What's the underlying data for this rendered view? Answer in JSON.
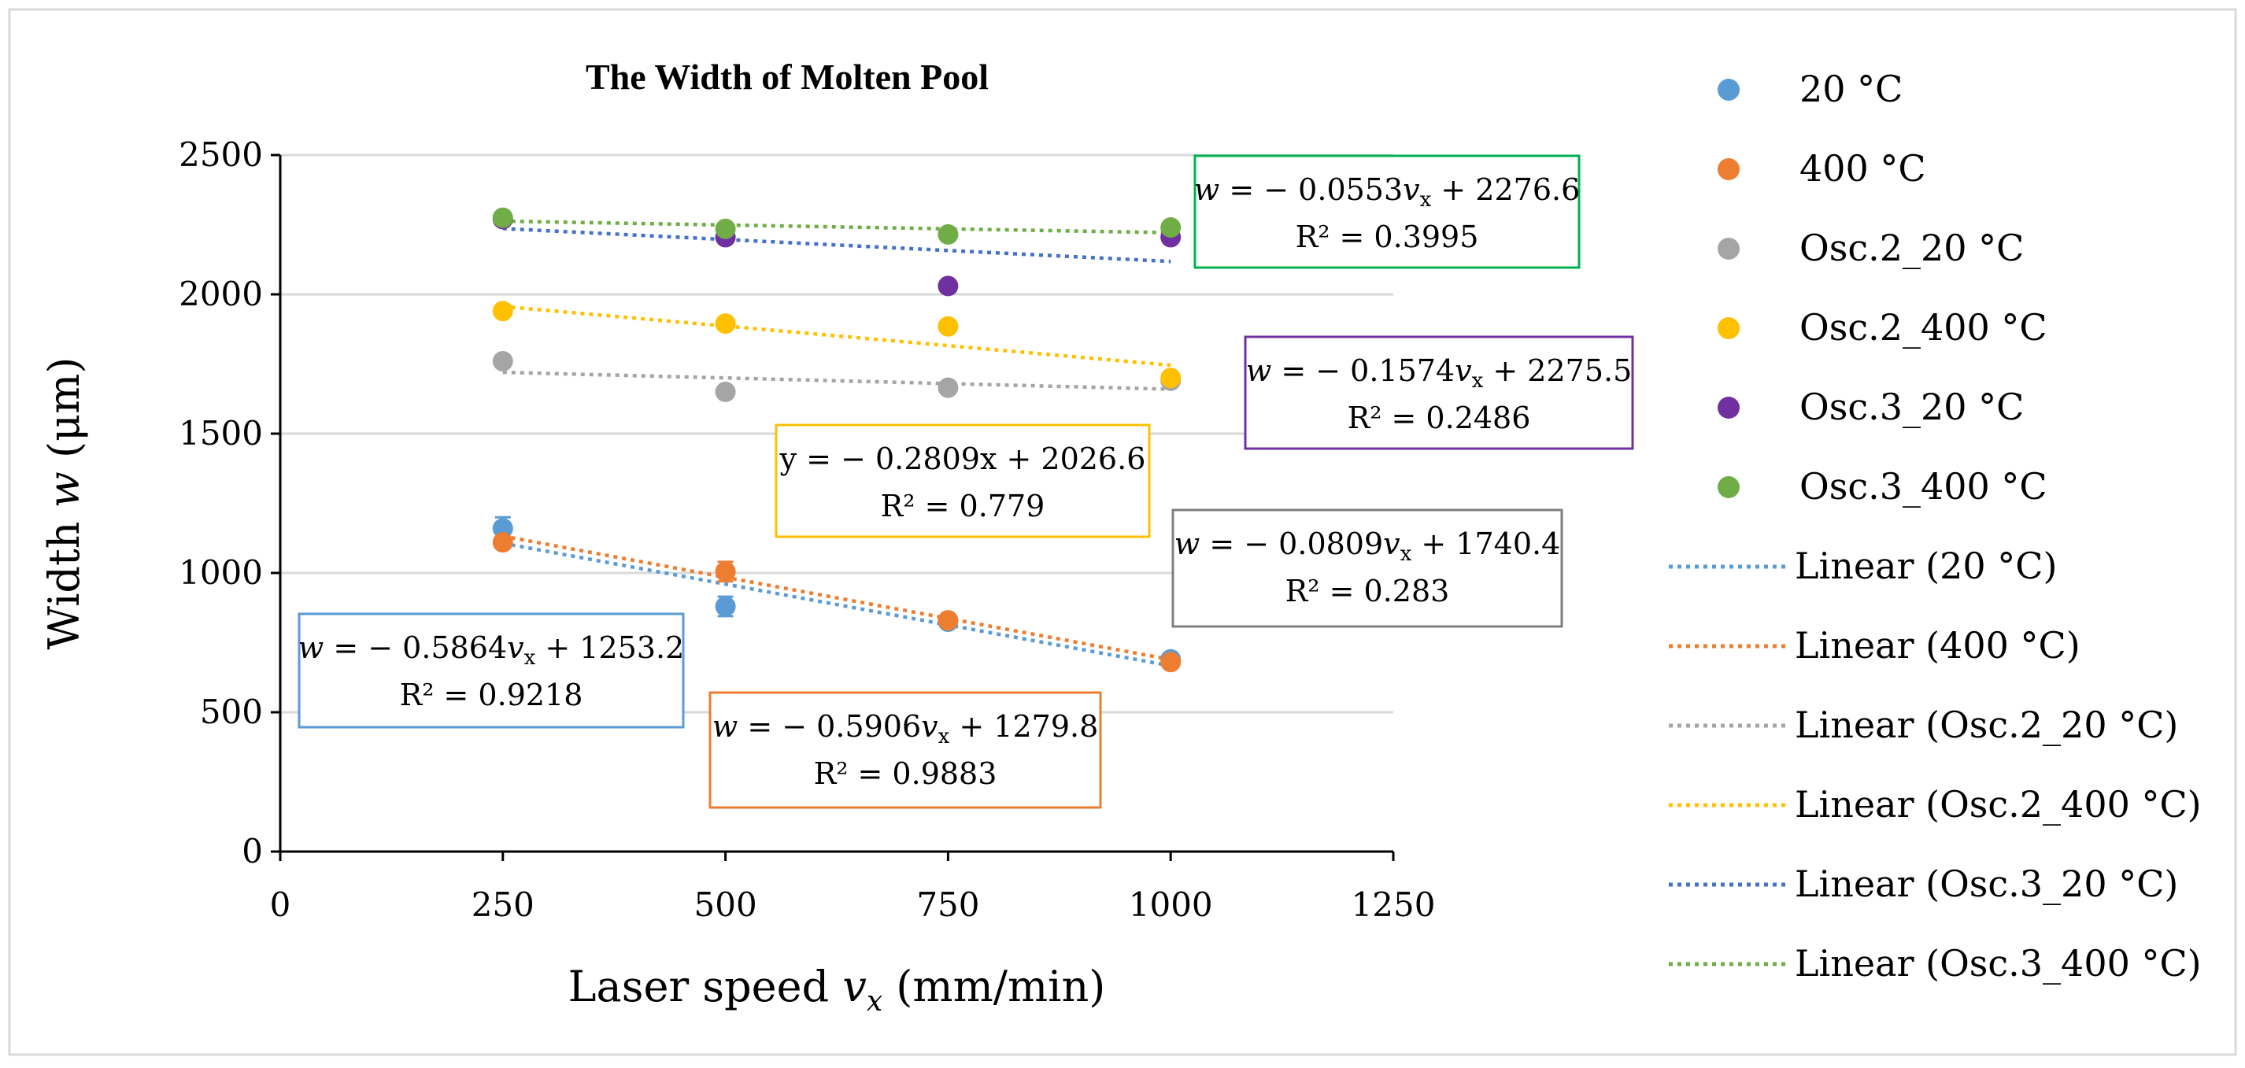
{
  "chart_data": {
    "type": "scatter",
    "title": "The Width  of Molten Pool",
    "xlabel": {
      "prefix": "Laser speed ",
      "var": "v",
      "sub": "x",
      "suffix": " (mm/min)"
    },
    "ylabel": {
      "prefix": "Width ",
      "var": "w",
      "suffix": " (μm)"
    },
    "xlim": [
      0,
      1250
    ],
    "ylim": [
      0,
      2500
    ],
    "xticks": [
      0,
      250,
      500,
      750,
      1000,
      1250
    ],
    "yticks": [
      0,
      500,
      1000,
      1500,
      2000,
      2500
    ],
    "grid": "horizontal",
    "legend_position": "right",
    "series": [
      {
        "key": "s20",
        "name": "20 °C",
        "color": "#5B9BD5",
        "x": [
          250,
          500,
          750,
          1000
        ],
        "y": [
          1160,
          880,
          825,
          690
        ],
        "err": [
          40,
          35,
          20,
          15
        ],
        "trend": {
          "slope": -0.5864,
          "intercept": 1253.2
        }
      },
      {
        "key": "s400",
        "name": "400 °C",
        "color": "#ED7D31",
        "x": [
          250,
          500,
          750,
          1000
        ],
        "y": [
          1110,
          1005,
          830,
          680
        ],
        "err": [
          20,
          35,
          20,
          10
        ],
        "trend": {
          "slope": -0.5906,
          "intercept": 1279.8
        }
      },
      {
        "key": "o2_20",
        "name": "Osc.2_20 °C",
        "color": "#A5A5A5",
        "x": [
          250,
          500,
          750,
          1000
        ],
        "y": [
          1760,
          1650,
          1665,
          1690
        ],
        "err": [
          0,
          0,
          0,
          0
        ],
        "trend": {
          "slope": -0.0809,
          "intercept": 1740.4
        }
      },
      {
        "key": "o2_400",
        "name": "Osc.2_400 °C",
        "color": "#FFC000",
        "x": [
          250,
          500,
          750,
          1000
        ],
        "y": [
          1940,
          1895,
          1885,
          1700
        ],
        "err": [
          0,
          0,
          0,
          0
        ],
        "trend": {
          "slope": -0.2809,
          "intercept": 2026.6
        }
      },
      {
        "key": "o3_20",
        "name": "Osc.3_20 °C",
        "color": "#7030A0",
        "x": [
          250,
          500,
          750,
          1000
        ],
        "y": [
          2270,
          2205,
          2030,
          2205
        ],
        "err": [
          0,
          0,
          0,
          0
        ],
        "trend": {
          "slope": -0.1574,
          "intercept": 2275.5
        }
      },
      {
        "key": "o3_400",
        "name": "Osc.3_400 °C",
        "color": "#70AD47",
        "x": [
          250,
          500,
          750,
          1000
        ],
        "y": [
          2275,
          2235,
          2215,
          2240
        ],
        "err": [
          0,
          0,
          0,
          0
        ],
        "trend": {
          "slope": -0.0553,
          "intercept": 2276.6
        }
      }
    ],
    "trendlines": [
      {
        "name": "Linear (20 °C)",
        "color": "#5B9BD5"
      },
      {
        "name": "Linear (400 °C)",
        "color": "#ED7D31"
      },
      {
        "name": "Linear (Osc.2_20 °C)",
        "color": "#A5A5A5"
      },
      {
        "name": "Linear (Osc.2_400 °C)",
        "color": "#FFC000"
      },
      {
        "name": "Linear (Osc.3_20 °C)",
        "color": "#4472C4"
      },
      {
        "name": "Linear (Osc.3_400 °C)",
        "color": "#70AD47"
      }
    ],
    "annotations": [
      {
        "key": "ann_o3_400",
        "color": "#00B050",
        "var": "w",
        "eq": " = − 0.0553",
        "v": "v",
        "sub": "x",
        "rest": " + 2276.6",
        "r2": "R² = 0.3995"
      },
      {
        "key": "ann_o3_20",
        "color": "#7030A0",
        "var": "w",
        "eq": " = − 0.1574",
        "v": "v",
        "sub": "x",
        "rest": " + 2275.5",
        "r2": "R² = 0.2486"
      },
      {
        "key": "ann_o2_400",
        "color": "#FFC000",
        "plain": "y = − 0.2809x + 2026.6",
        "r2": "R² = 0.779"
      },
      {
        "key": "ann_o2_20",
        "color": "#7F7F7F",
        "var": "w",
        "eq": " = − 0.0809",
        "v": "v",
        "sub": "x",
        "rest": " + 1740.4",
        "r2": "R² = 0.283"
      },
      {
        "key": "ann_s20",
        "color": "#5B9BD5",
        "var": "w",
        "eq": " = − 0.5864",
        "v": "v",
        "sub": "x",
        "rest": " + 1253.2",
        "r2": "R² = 0.9218"
      },
      {
        "key": "ann_s400",
        "color": "#ED7D31",
        "var": "w",
        "eq": " = − 0.5906",
        "v": "v",
        "sub": "x",
        "rest": " + 1279.8",
        "r2": "R² = 0.9883"
      }
    ]
  }
}
